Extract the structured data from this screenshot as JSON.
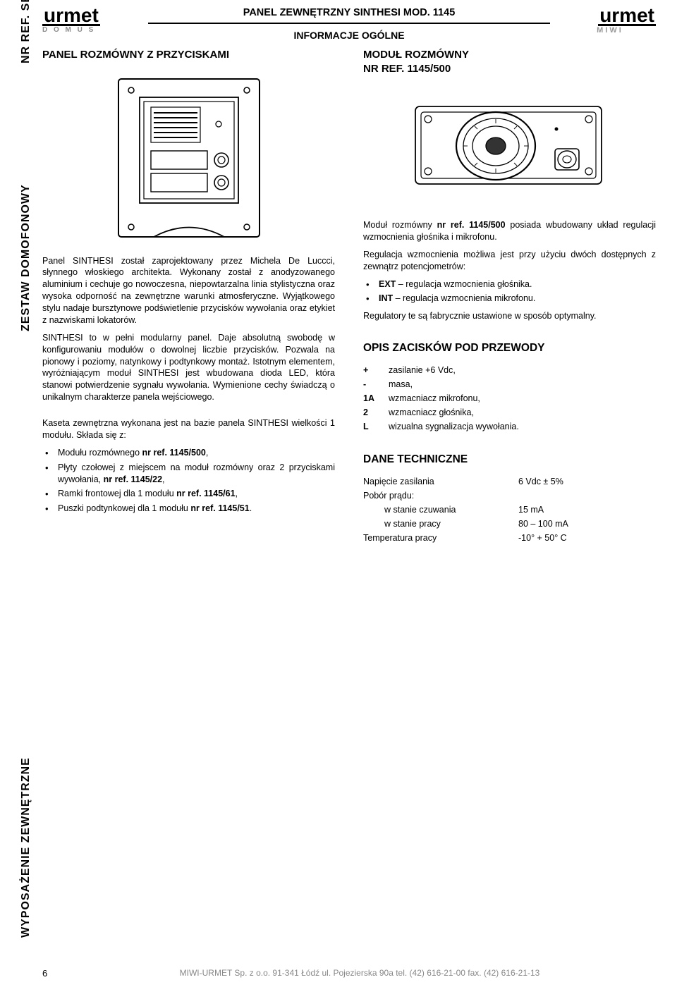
{
  "side": {
    "nrref": "NR REF. SET-KOM",
    "zestaw": "ZESTAW DOMOFONOWY",
    "wypos": "WYPOSAŻENIE ZEWNĘTRZNE"
  },
  "logos": {
    "left_main": "urmet",
    "left_sub": "D O M U S",
    "right_main": "urmet",
    "right_sub": "MIWI"
  },
  "header": {
    "title": "PANEL ZEWNĘTRZNY SINTHESI MOD. 1145",
    "subtitle": "INFORMACJE OGÓLNE"
  },
  "left": {
    "heading": "PANEL ROZMÓWNY Z PRZYCISKAMI",
    "para1": "Panel SINTHESI został zaprojektowany przez Michela De Luccci, słynnego włoskiego architekta. Wykonany został z anodyzowanego aluminium i cechuje go nowoczesna, niepowtarzalna linia stylistyczna oraz wysoka odporność na zewnętrzne warunki atmosferyczne. Wyjątkowego stylu nadaje bursztynowe podświetlenie przycisków wywołania oraz etykiet z nazwiskami lokatorów.",
    "para2": "SINTHESI to w pełni modularny panel. Daje absolutną swobodę w konfigurowaniu modułów o dowolnej liczbie przycisków. Pozwala na pionowy i poziomy, natynkowy i podtynkowy montaż. Istotnym elementem, wyróżniającym moduł SINTHESI jest wbudowana dioda LED, która stanowi potwierdzenie sygnału wywołania. Wymienione cechy świadczą o unikalnym charakterze panela wejściowego.",
    "para3": "Kaseta zewnętrzna wykonana jest na bazie panela SINTHESI wielkości 1 modułu. Składa się z:",
    "bullets": [
      "Modułu rozmównego <b>nr ref. 1145/500</b>,",
      "Płyty czołowej z miejscem na moduł rozmówny oraz 2 przyciskami wywołania, <b>nr ref. 1145/22</b>,",
      "Ramki frontowej dla 1 modułu <b>nr ref. 1145/61</b>,",
      "Puszki podtynkowej dla 1 modułu <b>nr ref. 1145/51</b>."
    ]
  },
  "right": {
    "heading": "MODUŁ ROZMÓWNY\nNR REF. 1145/500",
    "para1": "Moduł rozmówny <b>nr ref. 1145/500</b> posiada wbudowany układ regulacji wzmocnienia głośnika i mikrofonu.",
    "para2": "Regulacja wzmocnienia możliwa jest przy użyciu dwóch dostępnych z zewnątrz potencjometrów:",
    "bullets1": [
      "<b>EXT</b> – regulacja wzmocnienia głośnika.",
      "<b>INT</b> – regulacja wzmocnienia mikrofonu."
    ],
    "para3": "Regulatory te są fabrycznie ustawione w sposób optymalny.",
    "opis_heading": "OPIS ZACISKÓW POD PRZEWODY",
    "opis": [
      {
        "key": "+",
        "val": "zasilanie +6 Vdc,"
      },
      {
        "key": "-",
        "val": "masa,"
      },
      {
        "key": "1A",
        "val": "wzmacniacz mikrofonu,"
      },
      {
        "key": "2",
        "val": "wzmacniacz głośnika,"
      },
      {
        "key": "L",
        "val": "wizualna sygnalizacja wywołania."
      }
    ],
    "tech_heading": "DANE TECHNICZNE",
    "tech": [
      {
        "key": "Napięcie zasilania",
        "val": "6 Vdc ± 5%",
        "indent": false
      },
      {
        "key": "Pobór prądu:",
        "val": "",
        "indent": false
      },
      {
        "key": "w stanie czuwania",
        "val": "15 mA",
        "indent": true
      },
      {
        "key": "w stanie pracy",
        "val": "80 – 100 mA",
        "indent": true
      },
      {
        "key": "Temperatura pracy",
        "val": "-10° + 50° C",
        "indent": false
      }
    ]
  },
  "footer": {
    "page": "6",
    "text": "MIWI-URMET Sp. z o.o.   91-341 Łódź ul. Pojezierska 90a  tel. (42) 616-21-00  fax. (42) 616-21-13"
  },
  "colors": {
    "text": "#000000",
    "muted": "#888888",
    "logo_sub": "#9a9a9a"
  }
}
